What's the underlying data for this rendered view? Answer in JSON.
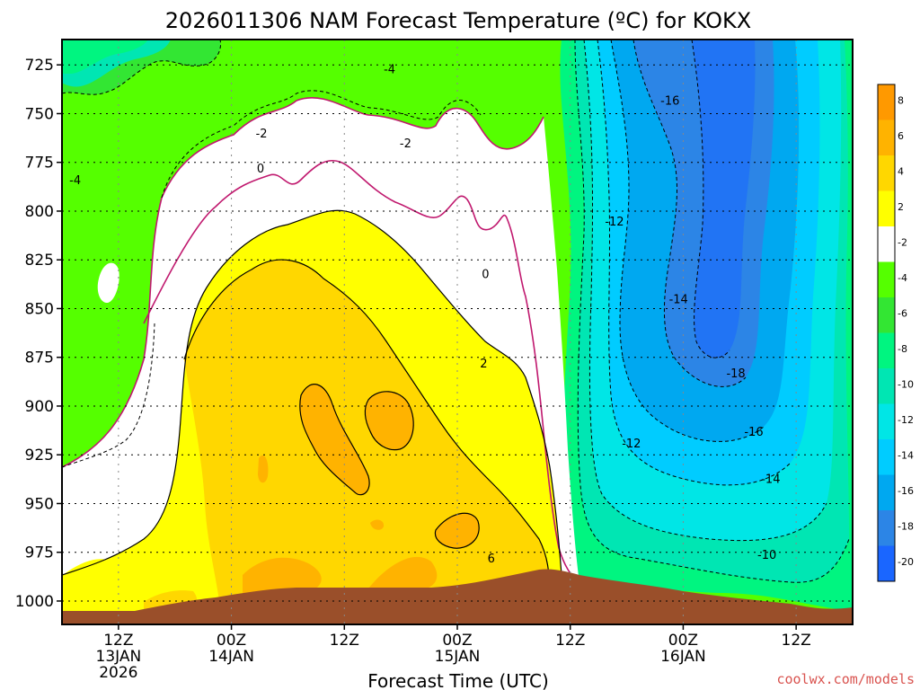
{
  "chart_data": {
    "type": "contour",
    "title": "2026011306 NAM Forecast Temperature (ºC) for KOKX",
    "xlabel": "Forecast Time (UTC)",
    "ylabel": "",
    "y_ticks": [
      725,
      750,
      775,
      800,
      825,
      850,
      875,
      900,
      925,
      950,
      975,
      1000
    ],
    "ylim": [
      1012,
      712
    ],
    "x_ticks": [
      {
        "hour": 6,
        "lines": [
          "12Z",
          "13JAN",
          "2026"
        ]
      },
      {
        "hour": 18,
        "lines": [
          "00Z",
          "14JAN"
        ]
      },
      {
        "hour": 30,
        "lines": [
          "12Z"
        ]
      },
      {
        "hour": 42,
        "lines": [
          "00Z",
          "15JAN"
        ]
      },
      {
        "hour": 54,
        "lines": [
          "12Z"
        ]
      },
      {
        "hour": 66,
        "lines": [
          "00Z",
          "16JAN"
        ]
      },
      {
        "hour": 78,
        "lines": [
          "12Z"
        ]
      }
    ],
    "xlim": [
      0,
      84
    ],
    "colorbar": {
      "labels": [
        "8",
        "6",
        "4",
        "2",
        "-2",
        "-4",
        "-6",
        "-8",
        "-10",
        "-12",
        "-14",
        "-16",
        "-18",
        "-20"
      ],
      "colors": [
        "#ff9900",
        "#ffb300",
        "#ffd700",
        "#ffff00",
        "#ffffff",
        "#55ff00",
        "#33e633",
        "#00f580",
        "#00e6b3",
        "#00e6e6",
        "#00ccff",
        "#00a8f0",
        "#2c85e6",
        "#1a66ff"
      ]
    },
    "fill_levels": [
      {
        "range": "< -16",
        "color": "#2c85e6"
      },
      {
        "range": "-16 to -14",
        "color": "#00a8f0"
      },
      {
        "range": "-14 to -12",
        "color": "#00ccff"
      },
      {
        "range": "-12 to -10",
        "color": "#00e6e6"
      },
      {
        "range": "-10 to -8",
        "color": "#00e6b3"
      },
      {
        "range": "-8 to -6",
        "color": "#00f580"
      },
      {
        "range": "-6 to -4",
        "color": "#33e633"
      },
      {
        "range": "-4 to -2",
        "color": "#55ff00"
      },
      {
        "range": "-2 to 2",
        "color": "#ffffff"
      },
      {
        "range": "2 to 4",
        "color": "#ffff00"
      },
      {
        "range": "4 to 6",
        "color": "#ffd700"
      },
      {
        "range": "6 to 8",
        "color": "#ffb300"
      }
    ],
    "contour_labels": [
      {
        "text": "-4",
        "hour": 34.8,
        "p": 727
      },
      {
        "text": "-2",
        "hour": 21.2,
        "p": 760
      },
      {
        "text": "-2",
        "hour": 36.5,
        "p": 765
      },
      {
        "text": "-4",
        "hour": 1.4,
        "p": 784
      },
      {
        "text": "0",
        "hour": 21.1,
        "p": 778
      },
      {
        "text": "0",
        "hour": 45.0,
        "p": 832
      },
      {
        "text": "2",
        "hour": 44.8,
        "p": 878
      },
      {
        "text": "6",
        "hour": 45.6,
        "p": 978
      },
      {
        "text": "-12",
        "hour": 58.7,
        "p": 805
      },
      {
        "text": "-14",
        "hour": 65.5,
        "p": 845
      },
      {
        "text": "-16",
        "hour": 64.6,
        "p": 743
      },
      {
        "text": "-18",
        "hour": 71.6,
        "p": 883
      },
      {
        "text": "-16",
        "hour": 73.5,
        "p": 913
      },
      {
        "text": "-12",
        "hour": 60.5,
        "p": 919
      },
      {
        "text": "-14",
        "hour": 75.3,
        "p": 937
      },
      {
        "text": "-10",
        "hour": 74.9,
        "p": 976
      }
    ],
    "terrain_color": "#9a4f2a",
    "zero_contour_color": "#c0186e",
    "grid": true
  },
  "credit": "coolwx.com/models"
}
